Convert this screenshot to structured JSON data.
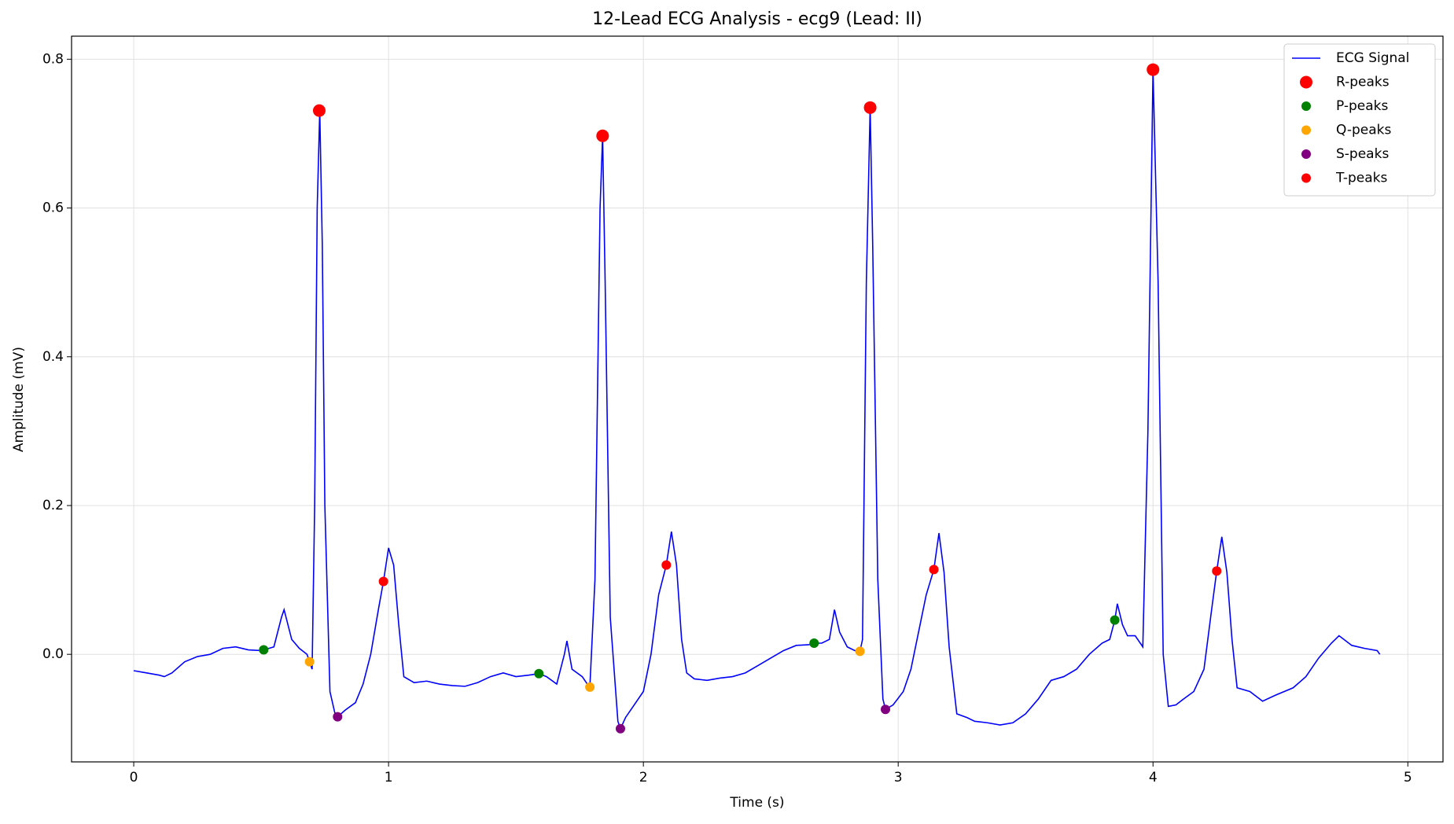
{
  "chart_data": {
    "type": "line",
    "title": "12-Lead ECG Analysis - ecg9 (Lead: II)",
    "xlabel": "Time (s)",
    "ylabel": "Amplitude (mV)",
    "xlim": [
      -0.244,
      5.138
    ],
    "ylim": [
      -0.1446,
      0.831
    ],
    "xticks": [
      0,
      1,
      2,
      3,
      4,
      5
    ],
    "yticks": [
      {
        "value": 0,
        "label": "0.0"
      },
      0.2,
      0.4,
      0.6,
      0.8
    ],
    "grid": true,
    "legend": "upper right",
    "x": [
      0,
      0.05,
      0.1,
      0.12,
      0.15,
      0.2,
      0.25,
      0.3,
      0.35,
      0.4,
      0.45,
      0.5,
      0.55,
      0.58,
      0.59,
      0.62,
      0.65,
      0.68,
      0.69,
      0.7,
      0.71,
      0.72,
      0.73,
      0.74,
      0.75,
      0.77,
      0.79,
      0.8,
      0.83,
      0.87,
      0.9,
      0.93,
      0.96,
      0.98,
      1.0,
      1.02,
      1.04,
      1.06,
      1.1,
      1.15,
      1.2,
      1.25,
      1.3,
      1.35,
      1.4,
      1.45,
      1.5,
      1.55,
      1.59,
      1.62,
      1.66,
      1.69,
      1.7,
      1.72,
      1.76,
      1.78,
      1.79,
      1.81,
      1.83,
      1.84,
      1.85,
      1.87,
      1.9,
      1.91,
      1.93,
      1.96,
      2.0,
      2.03,
      2.06,
      2.09,
      2.11,
      2.13,
      2.15,
      2.17,
      2.2,
      2.25,
      2.3,
      2.35,
      2.4,
      2.45,
      2.5,
      2.55,
      2.6,
      2.65,
      2.67,
      2.7,
      2.73,
      2.75,
      2.77,
      2.8,
      2.83,
      2.85,
      2.86,
      2.875,
      2.89,
      2.9,
      2.92,
      2.94,
      2.95,
      2.98,
      3.02,
      3.05,
      3.08,
      3.11,
      3.14,
      3.16,
      3.18,
      3.2,
      3.23,
      3.27,
      3.3,
      3.35,
      3.4,
      3.45,
      3.5,
      3.55,
      3.6,
      3.65,
      3.7,
      3.75,
      3.8,
      3.83,
      3.85,
      3.86,
      3.88,
      3.9,
      3.93,
      3.96,
      3.98,
      4.0,
      4.02,
      4.04,
      4.06,
      4.09,
      4.12,
      4.16,
      4.2,
      4.23,
      4.25,
      4.27,
      4.29,
      4.31,
      4.33,
      4.38,
      4.43,
      4.48,
      4.55,
      4.6,
      4.65,
      4.7,
      4.73,
      4.78,
      4.83,
      4.88,
      4.89
    ],
    "series": [
      {
        "name": "ECG Signal",
        "type": "line",
        "color": "#0000ff",
        "values": [
          -0.022,
          -0.025,
          -0.028,
          -0.03,
          -0.025,
          -0.01,
          -0.003,
          0.0,
          0.008,
          0.01,
          0.006,
          0.005,
          0.01,
          0.05,
          0.06,
          0.02,
          0.008,
          0.0,
          -0.01,
          -0.02,
          0.2,
          0.6,
          0.731,
          0.55,
          0.2,
          -0.05,
          -0.08,
          -0.084,
          -0.075,
          -0.065,
          -0.04,
          0.0,
          0.06,
          0.098,
          0.143,
          0.12,
          0.04,
          -0.03,
          -0.038,
          -0.036,
          -0.04,
          -0.042,
          -0.043,
          -0.038,
          -0.03,
          -0.025,
          -0.03,
          -0.028,
          -0.026,
          -0.03,
          -0.04,
          0.0,
          0.018,
          -0.02,
          -0.03,
          -0.04,
          -0.044,
          0.1,
          0.6,
          0.697,
          0.5,
          0.05,
          -0.09,
          -0.1,
          -0.085,
          -0.07,
          -0.05,
          0.0,
          0.08,
          0.12,
          0.165,
          0.12,
          0.02,
          -0.025,
          -0.033,
          -0.035,
          -0.032,
          -0.03,
          -0.025,
          -0.015,
          -0.005,
          0.005,
          0.012,
          0.013,
          0.015,
          0.015,
          0.02,
          0.06,
          0.03,
          0.01,
          0.005,
          0.004,
          0.02,
          0.5,
          0.735,
          0.55,
          0.1,
          -0.06,
          -0.074,
          -0.068,
          -0.05,
          -0.02,
          0.03,
          0.08,
          0.114,
          0.163,
          0.11,
          0.01,
          -0.08,
          -0.085,
          -0.09,
          -0.092,
          -0.095,
          -0.092,
          -0.08,
          -0.06,
          -0.035,
          -0.03,
          -0.02,
          0.0,
          0.015,
          0.02,
          0.046,
          0.068,
          0.04,
          0.025,
          0.025,
          0.01,
          0.3,
          0.786,
          0.5,
          0.0,
          -0.07,
          -0.068,
          -0.06,
          -0.05,
          -0.02,
          0.06,
          0.112,
          0.158,
          0.11,
          0.02,
          -0.045,
          -0.05,
          -0.063,
          -0.055,
          -0.045,
          -0.03,
          -0.005,
          0.015,
          0.025,
          0.012,
          0.008,
          0.005,
          0.0
        ]
      },
      {
        "name": "R-peaks",
        "type": "scatter",
        "color": "#ff0000",
        "markersize": 8,
        "x": [
          0.728,
          1.84,
          2.89,
          4.0
        ],
        "values": [
          0.731,
          0.697,
          0.735,
          0.786
        ]
      },
      {
        "name": "P-peaks",
        "type": "scatter",
        "color": "#008000",
        "markersize": 6,
        "x": [
          0.51,
          1.59,
          2.67,
          3.85
        ],
        "values": [
          0.006,
          -0.026,
          0.015,
          0.046
        ]
      },
      {
        "name": "Q-peaks",
        "type": "scatter",
        "color": "#ffa500",
        "markersize": 6,
        "x": [
          0.69,
          1.79,
          2.85
        ],
        "values": [
          -0.01,
          -0.044,
          0.004
        ]
      },
      {
        "name": "S-peaks",
        "type": "scatter",
        "color": "#800080",
        "markersize": 6,
        "x": [
          0.8,
          1.91,
          2.95
        ],
        "values": [
          -0.084,
          -0.1,
          -0.074
        ]
      },
      {
        "name": "T-peaks",
        "type": "scatter",
        "color": "#ff0000",
        "markersize": 6,
        "x": [
          0.98,
          2.09,
          3.14,
          4.25
        ],
        "values": [
          0.098,
          0.12,
          0.114,
          0.112
        ]
      }
    ]
  }
}
